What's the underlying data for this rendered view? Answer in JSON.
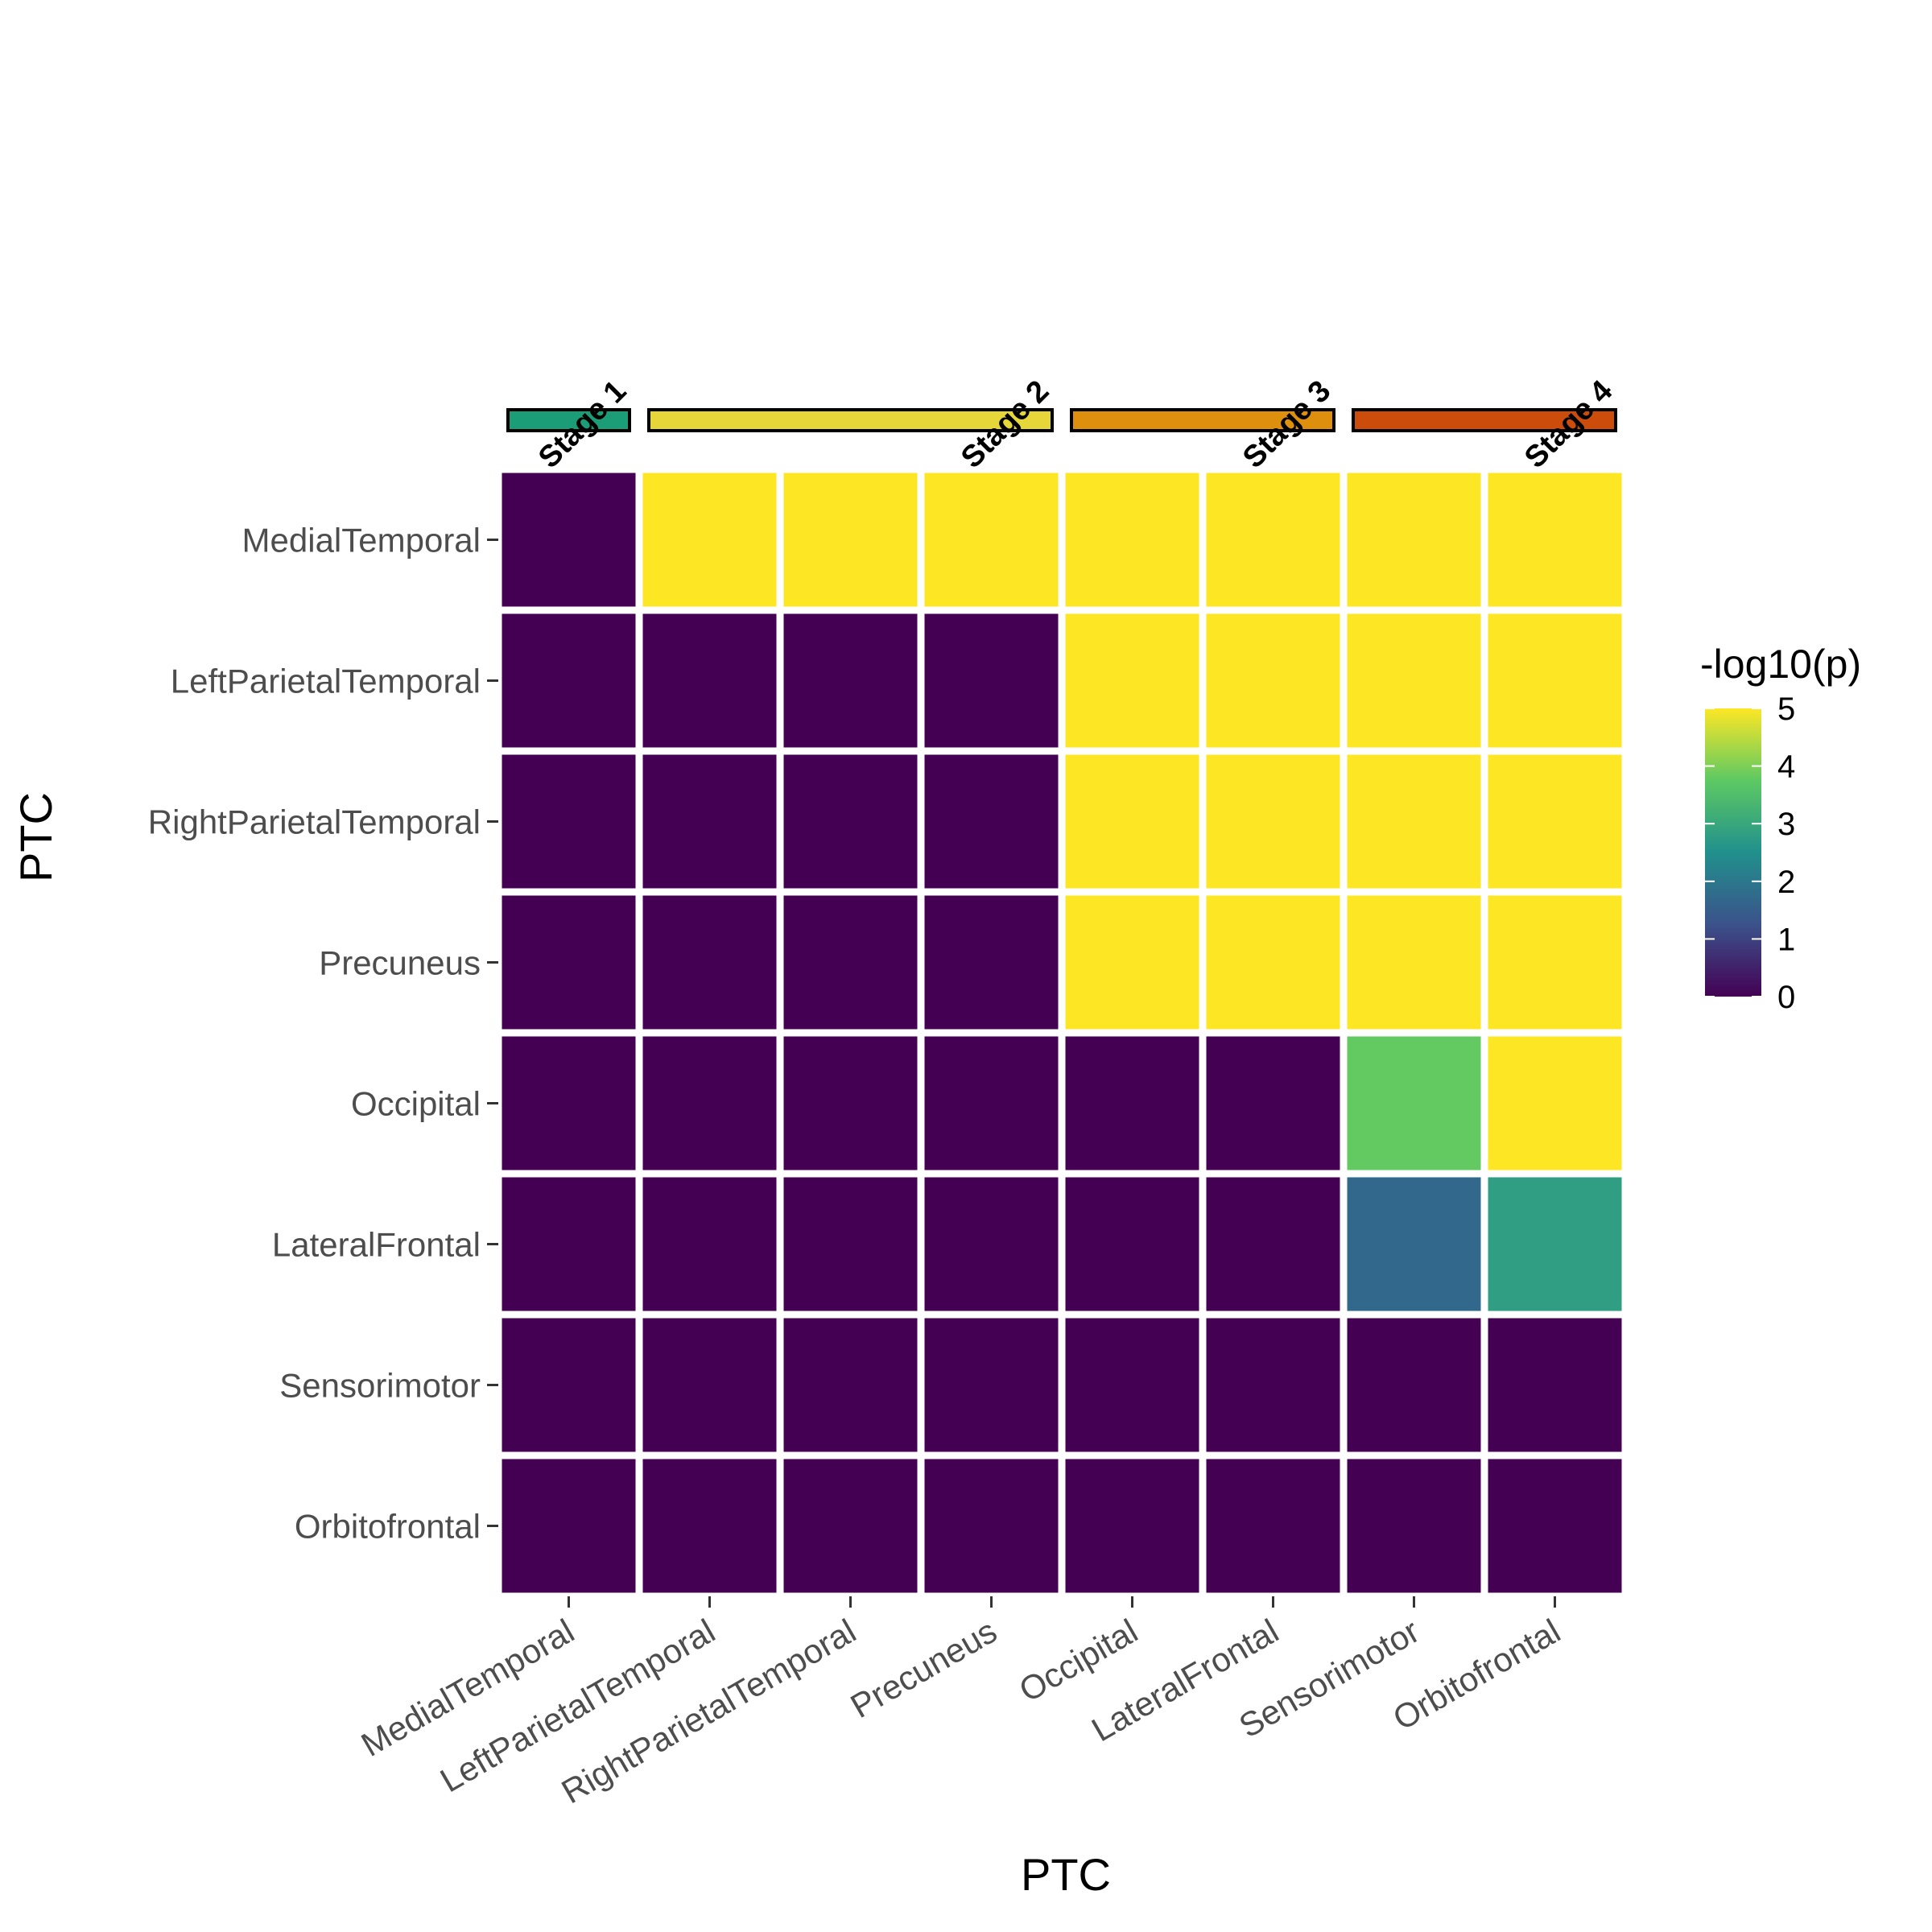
{
  "chart_data": {
    "type": "heatmap",
    "title": "",
    "xlabel": "PTC",
    "ylabel": "PTC",
    "categories_x": [
      "MedialTemporal",
      "LeftParietalTemporal",
      "RightParietalTemporal",
      "Precuneus",
      "Occipital",
      "LateralFrontal",
      "Sensorimotor",
      "Orbitofrontal"
    ],
    "categories_y": [
      "MedialTemporal",
      "LeftParietalTemporal",
      "RightParietalTemporal",
      "Precuneus",
      "Occipital",
      "LateralFrontal",
      "Sensorimotor",
      "Orbitofrontal"
    ],
    "values": [
      [
        0,
        5,
        5,
        5,
        5,
        5,
        5,
        5
      ],
      [
        0,
        0,
        0,
        0,
        5,
        5,
        5,
        5
      ],
      [
        0,
        0,
        0,
        0,
        5,
        5,
        5,
        5
      ],
      [
        0,
        0,
        0,
        0,
        5,
        5,
        5,
        5
      ],
      [
        0,
        0,
        0,
        0,
        0,
        0,
        3.8,
        5
      ],
      [
        0,
        0,
        0,
        0,
        0,
        0,
        1.7,
        2.8
      ],
      [
        0,
        0,
        0,
        0,
        0,
        0,
        0,
        0
      ],
      [
        0,
        0,
        0,
        0,
        0,
        0,
        0,
        0
      ]
    ],
    "colorbar": {
      "title": "-log10(p)",
      "range": [
        0,
        5
      ],
      "ticks": [
        "0",
        "1",
        "2",
        "3",
        "4",
        "5"
      ],
      "palette": [
        "#440154",
        "#3b528b",
        "#21908c",
        "#5dc963",
        "#fde725"
      ]
    },
    "stages": [
      {
        "label": "Stage 1",
        "start": 0,
        "end": 0,
        "color": "#1b9e77"
      },
      {
        "label": "Stage 2",
        "start": 1,
        "end": 3,
        "color": "#e6d63a"
      },
      {
        "label": "Stage 3",
        "start": 4,
        "end": 5,
        "color": "#de8f0e"
      },
      {
        "label": "Stage 4",
        "start": 6,
        "end": 7,
        "color": "#cc4c0b"
      }
    ]
  }
}
